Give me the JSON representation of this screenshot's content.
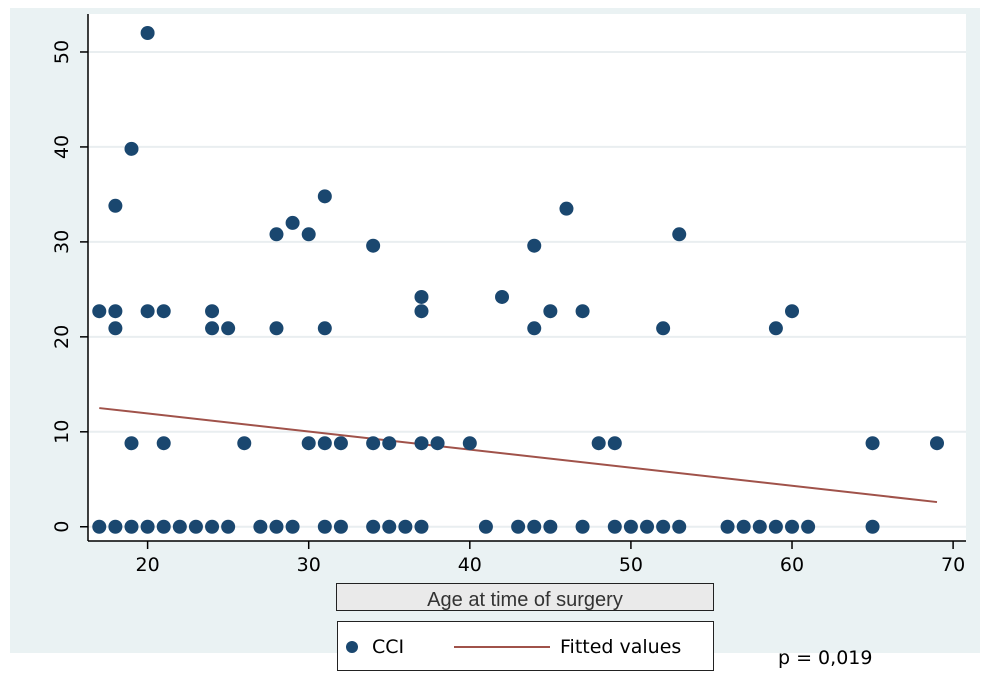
{
  "chart_data": {
    "type": "scatter",
    "title": "",
    "xlabel": "Age at time of surgery",
    "ylabel": "",
    "xlim": [
      16.3,
      70.8
    ],
    "ylim": [
      -1.5,
      54
    ],
    "xticks": [
      20,
      30,
      40,
      50,
      60,
      70
    ],
    "yticks": [
      0,
      10,
      20,
      30,
      40,
      50
    ],
    "grid": true,
    "legend_position": "bottom",
    "series": [
      {
        "name": "CCI",
        "kind": "scatter",
        "color": "#1a476f",
        "points": [
          [
            17,
            22.7
          ],
          [
            17,
            0
          ],
          [
            18,
            33.8
          ],
          [
            18,
            22.7
          ],
          [
            18,
            20.9
          ],
          [
            18,
            0
          ],
          [
            19,
            39.8
          ],
          [
            19,
            8.8
          ],
          [
            19,
            0
          ],
          [
            20,
            52
          ],
          [
            20,
            22.7
          ],
          [
            20,
            0
          ],
          [
            21,
            22.7
          ],
          [
            21,
            8.8
          ],
          [
            21,
            0
          ],
          [
            22,
            0
          ],
          [
            23,
            0
          ],
          [
            24,
            22.7
          ],
          [
            24,
            20.9
          ],
          [
            24,
            0
          ],
          [
            25,
            20.9
          ],
          [
            25,
            0
          ],
          [
            26,
            8.8
          ],
          [
            27,
            0
          ],
          [
            28,
            30.8
          ],
          [
            28,
            20.9
          ],
          [
            28,
            0
          ],
          [
            29,
            32
          ],
          [
            29,
            0
          ],
          [
            30,
            30.8
          ],
          [
            30,
            8.8
          ],
          [
            31,
            34.8
          ],
          [
            31,
            20.9
          ],
          [
            31,
            8.8
          ],
          [
            31,
            0
          ],
          [
            32,
            8.8
          ],
          [
            32,
            0
          ],
          [
            34,
            29.6
          ],
          [
            34,
            8.8
          ],
          [
            34,
            0
          ],
          [
            35,
            8.8
          ],
          [
            35,
            0
          ],
          [
            36,
            0
          ],
          [
            37,
            24.2
          ],
          [
            37,
            22.7
          ],
          [
            37,
            8.8
          ],
          [
            37,
            0
          ],
          [
            38,
            8.8
          ],
          [
            40,
            8.8
          ],
          [
            41,
            0
          ],
          [
            42,
            24.2
          ],
          [
            43,
            0
          ],
          [
            44,
            29.6
          ],
          [
            44,
            20.9
          ],
          [
            44,
            0
          ],
          [
            45,
            22.7
          ],
          [
            45,
            0
          ],
          [
            46,
            33.5
          ],
          [
            47,
            22.7
          ],
          [
            47,
            0
          ],
          [
            48,
            8.8
          ],
          [
            49,
            8.8
          ],
          [
            49,
            0
          ],
          [
            50,
            0
          ],
          [
            51,
            0
          ],
          [
            52,
            20.9
          ],
          [
            52,
            0
          ],
          [
            53,
            30.8
          ],
          [
            53,
            0
          ],
          [
            56,
            0
          ],
          [
            57,
            0
          ],
          [
            58,
            0
          ],
          [
            59,
            20.9
          ],
          [
            59,
            0
          ],
          [
            60,
            22.7
          ],
          [
            60,
            0
          ],
          [
            61,
            0
          ],
          [
            65,
            8.8
          ],
          [
            65,
            0
          ],
          [
            69,
            8.8
          ]
        ]
      },
      {
        "name": "Fitted values",
        "kind": "line",
        "color": "#a0524a",
        "points": [
          [
            17,
            12.5
          ],
          [
            69,
            2.6
          ]
        ]
      }
    ],
    "annotations": [
      "p = 0,019"
    ]
  }
}
